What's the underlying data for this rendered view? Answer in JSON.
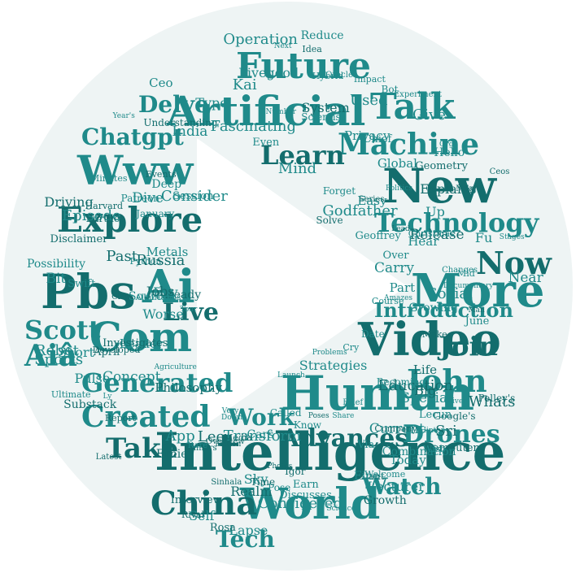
{
  "colors": {
    "word": "#1f8a8a",
    "word_dark": "#136d6d",
    "circle": "#eef4f4",
    "triangle": "#ffffff",
    "background": "#ffffff"
  },
  "shape": "play-button",
  "words_large": [
    "Intelligence",
    "Artificial",
    "Human",
    "Video",
    "World",
    "More",
    "New",
    "Future",
    "Www",
    "Pbs",
    "Ai",
    "Com",
    "Explore",
    "Talk",
    "Machine",
    "Learn",
    "Technology",
    "John",
    "Join",
    "Created",
    "Generated",
    "Live",
    "Scott",
    "Aiâ",
    "China",
    "Delve",
    "Chatgpt",
    "Advances",
    "Drones",
    "Watch",
    "Take",
    "Tech",
    "Work",
    "Now",
    "Introduction"
  ],
  "words_medium": [
    "Developed",
    "Dive",
    "Discusses",
    "Already",
    "Over",
    "Changes",
    "Lead",
    "Earn",
    "Ly",
    "Lee",
    "Chief",
    "Hi",
    "Idea",
    "Give",
    "Growing",
    "Report",
    "Patreon",
    "Robot",
    "Computer",
    "Course",
    "Ceo",
    "Man",
    "Current",
    "Know",
    "Life",
    "Short",
    "Kai",
    "Pelley's",
    "Share",
    "Leader",
    "Past",
    "India",
    "Concept",
    "Explains",
    "Privacy",
    "Episode",
    "System",
    "Today",
    "Python",
    "Giant",
    "Self",
    "Forget",
    "Geometry",
    "Algorithms",
    "Number",
    "Education",
    "Cars",
    "Fpv",
    "Release",
    "Wfsb",
    "Transform",
    "Mike",
    "Sky",
    "Fu",
    "Further",
    "Bot",
    "Deep",
    "Latest",
    "Sports",
    "Politics",
    "Make",
    "Used",
    "Tour",
    "Igor",
    "Minutes",
    "Documentary",
    "Fiction",
    "Godfather",
    "Near",
    "Philosophy",
    "Combination",
    "Launch",
    "Photos",
    "Date",
    "Becoming",
    "Interview",
    "Hello",
    "Worse",
    "Events",
    "Special",
    "Hybrid",
    "Big",
    "Agriculture",
    "Even",
    "April",
    "Pulse",
    "Stages",
    "Media",
    "Global",
    "Lecturer",
    "Ernie",
    "Consider",
    "Considered",
    "Solve",
    "Next",
    "Amazes",
    "Harvard",
    "June",
    "Hear",
    "Juniors",
    "Reduce",
    "Welcome",
    "Rival",
    "Down",
    "Mind",
    "Driving",
    "Impact",
    "Type",
    "Investigates",
    "Called",
    "Brief",
    "Google's",
    "Problems",
    "Swift",
    "Russia",
    "Hinton",
    "Oracle",
    "Understanding",
    "Fascinating",
    "Oliver",
    "Realm",
    "Science",
    "Experiment",
    "Disclaimer",
    "Strategies",
    "Part",
    "Overview",
    "Possibility",
    "Cry",
    "Time",
    "Christmas",
    "Easy",
    "Whats",
    "Lecun",
    "Geoffrey",
    "Substack",
    "Lapse",
    "January",
    "Sinhala",
    "Livegood",
    "Bit",
    "Growth",
    "Up",
    "Session",
    "Class",
    "Operation",
    "Carry",
    "Rosa",
    "Very",
    "Sources",
    "Jobs",
    "Metals",
    "Pose",
    "Poses",
    "Via",
    "Mid",
    "Sri",
    "Org",
    "App",
    "Series",
    "Rare",
    "Social",
    "Company",
    "Fine",
    "Year's",
    "Ceos",
    "Scientist",
    "Ultimate"
  ]
}
